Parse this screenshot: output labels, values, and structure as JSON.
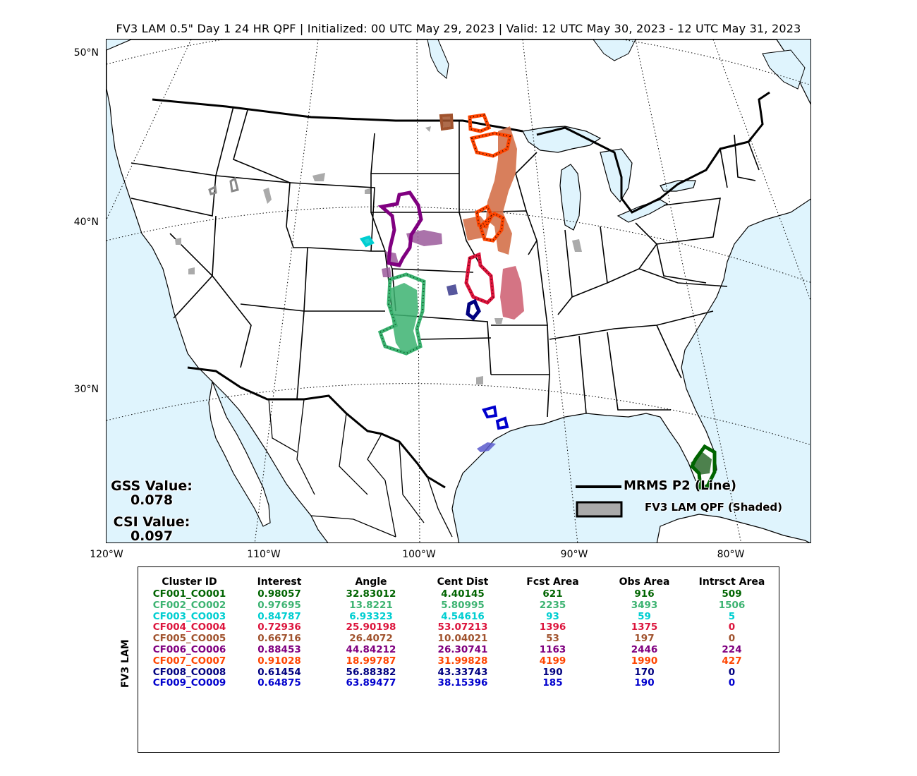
{
  "title": "FV3 LAM 0.5\" Day 1 24 HR QPF | Initialized: 00 UTC May 29, 2023 | Valid: 12 UTC May 30, 2023 - 12 UTC May 31, 2023",
  "axes": {
    "lat_labels": [
      "50°N",
      "40°N",
      "30°N"
    ],
    "lon_labels": [
      "120°W",
      "110°W",
      "100°W",
      "90°W",
      "80°W"
    ]
  },
  "stats": {
    "gss_label": "GSS Value:",
    "gss_value": "0.078",
    "csi_label": "CSI Value:",
    "csi_value": "0.097"
  },
  "legend": {
    "obs_label": "MRMS P2 (Line)",
    "fcst_label": "FV3 LAM QPF (Shaded)"
  },
  "table": {
    "model_label": "FV3 LAM",
    "headers": [
      "Cluster ID",
      "Interest",
      "Angle",
      "Cent Dist",
      "Fcst Area",
      "Obs Area",
      "Intrsct Area"
    ],
    "rows": [
      {
        "color": "#006400",
        "cells": [
          "CF001_CO001",
          "0.98057",
          "32.83012",
          "4.40145",
          "621",
          "916",
          "509"
        ]
      },
      {
        "color": "#3cb371",
        "cells": [
          "CF002_CO002",
          "0.97695",
          "13.8221",
          "5.80995",
          "2235",
          "3493",
          "1506"
        ]
      },
      {
        "color": "#00ced1",
        "cells": [
          "CF003_CO003",
          "0.84787",
          "6.93323",
          "4.54616",
          "93",
          "59",
          "5"
        ]
      },
      {
        "color": "#dc143c",
        "cells": [
          "CF004_CO004",
          "0.72936",
          "25.90198",
          "53.07213",
          "1396",
          "1375",
          "0"
        ]
      },
      {
        "color": "#a0522d",
        "cells": [
          "CF005_CO005",
          "0.66716",
          "26.4072",
          "10.04021",
          "53",
          "197",
          "0"
        ]
      },
      {
        "color": "#800080",
        "cells": [
          "CF006_CO006",
          "0.88453",
          "44.84212",
          "26.30741",
          "1163",
          "2446",
          "224"
        ]
      },
      {
        "color": "#ff4500",
        "cells": [
          "CF007_CO007",
          "0.91028",
          "18.99787",
          "31.99828",
          "4199",
          "1990",
          "427"
        ]
      },
      {
        "color": "#000080",
        "cells": [
          "CF008_CO008",
          "0.61454",
          "56.88382",
          "43.33743",
          "190",
          "170",
          "0"
        ]
      },
      {
        "color": "#0000cd",
        "cells": [
          "CF009_CO009",
          "0.64875",
          "63.89477",
          "38.15396",
          "185",
          "190",
          "0"
        ]
      }
    ]
  },
  "colors": {
    "water": "#dff4fd",
    "land": "#ffffff",
    "unmatched_fcst": "#aaaaaa"
  }
}
